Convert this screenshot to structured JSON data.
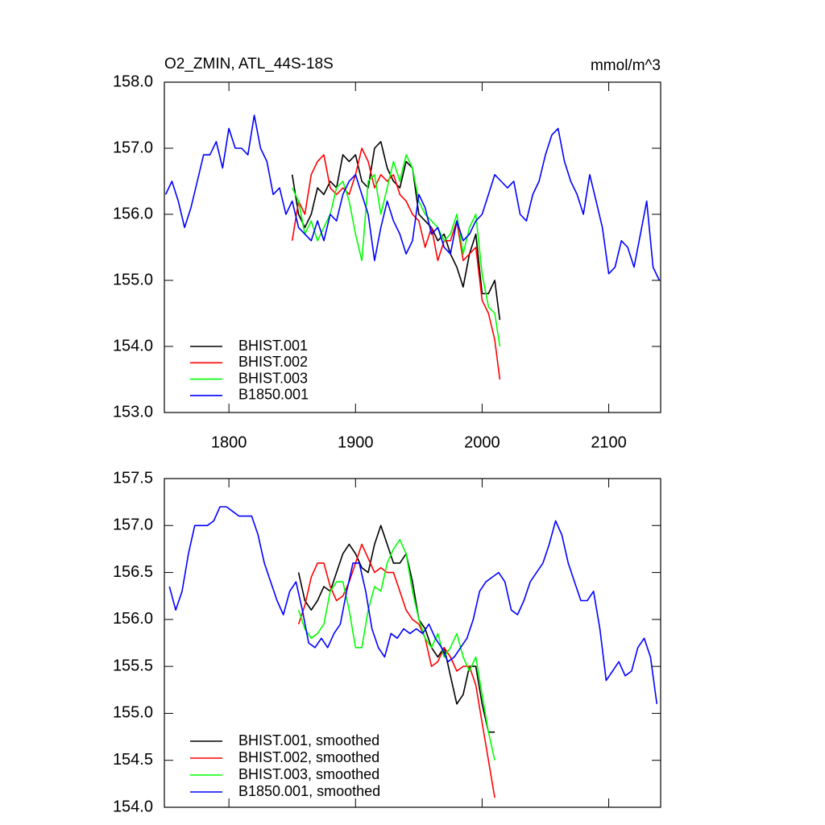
{
  "chart_data": [
    {
      "type": "line",
      "title": "O2_ZMIN, ATL_44S-18S",
      "units": "mmol/m^3",
      "xlim": [
        1749,
        2141
      ],
      "xticks": [
        1800,
        1900,
        2000,
        2100
      ],
      "show_xtick_labels": true,
      "ylim": [
        153,
        158
      ],
      "yticks": [
        {
          "value": 153,
          "label": "153.0"
        },
        {
          "value": 154,
          "label": "154.0"
        },
        {
          "value": 155,
          "label": "155.0"
        },
        {
          "value": 156,
          "label": "156.0"
        },
        {
          "value": 157,
          "label": "157.0"
        },
        {
          "value": 158,
          "label": "158.0"
        }
      ],
      "legend": "lower left",
      "series": [
        {
          "name": "BHIST.001",
          "color": "#000000",
          "x": [
            1850,
            1855,
            1860,
            1865,
            1870,
            1875,
            1880,
            1885,
            1890,
            1895,
            1900,
            1905,
            1910,
            1915,
            1920,
            1925,
            1930,
            1935,
            1940,
            1945,
            1950,
            1955,
            1960,
            1965,
            1970,
            1975,
            1980,
            1985,
            1990,
            1995,
            2000,
            2005,
            2010,
            2014
          ],
          "values": [
            156.6,
            156.0,
            155.8,
            156.0,
            156.4,
            156.3,
            156.5,
            156.4,
            156.9,
            156.8,
            156.9,
            156.5,
            156.4,
            157.0,
            157.1,
            156.7,
            156.5,
            156.4,
            156.8,
            156.7,
            156.0,
            155.9,
            155.8,
            155.6,
            155.7,
            155.4,
            155.2,
            154.9,
            155.4,
            155.7,
            154.8,
            154.8,
            155.0,
            154.4
          ]
        },
        {
          "name": "BHIST.002",
          "color": "#ff0000",
          "x": [
            1850,
            1855,
            1860,
            1865,
            1870,
            1875,
            1880,
            1885,
            1890,
            1895,
            1900,
            1905,
            1910,
            1915,
            1920,
            1925,
            1930,
            1935,
            1940,
            1945,
            1950,
            1955,
            1960,
            1965,
            1970,
            1975,
            1980,
            1985,
            1990,
            1995,
            2000,
            2005,
            2010,
            2014
          ],
          "values": [
            155.6,
            156.2,
            156.0,
            156.6,
            156.8,
            156.9,
            156.4,
            156.3,
            156.4,
            156.3,
            156.6,
            157.0,
            156.8,
            156.4,
            156.6,
            156.5,
            156.6,
            156.3,
            156.2,
            156.0,
            155.9,
            155.5,
            155.8,
            155.3,
            155.6,
            155.6,
            155.9,
            155.3,
            155.4,
            155.5,
            154.7,
            154.5,
            154.1,
            153.5
          ]
        },
        {
          "name": "BHIST.003",
          "color": "#00ff00",
          "x": [
            1850,
            1855,
            1860,
            1865,
            1870,
            1875,
            1880,
            1885,
            1890,
            1895,
            1900,
            1905,
            1910,
            1915,
            1920,
            1925,
            1930,
            1935,
            1940,
            1945,
            1950,
            1955,
            1960,
            1965,
            1970,
            1975,
            1980,
            1985,
            1990,
            1995,
            2000,
            2005,
            2010,
            2014
          ],
          "values": [
            156.4,
            156.2,
            155.7,
            155.9,
            155.6,
            155.8,
            156.0,
            156.4,
            156.5,
            156.2,
            155.7,
            155.3,
            156.5,
            156.6,
            156.0,
            156.4,
            156.8,
            156.5,
            156.9,
            156.7,
            156.2,
            156.0,
            155.9,
            155.8,
            155.6,
            155.7,
            156.0,
            155.4,
            155.8,
            156.0,
            155.1,
            154.6,
            154.5,
            154.0
          ]
        },
        {
          "name": "B1850.001",
          "color": "#0000ff",
          "x": [
            1750,
            1755,
            1760,
            1765,
            1770,
            1775,
            1780,
            1785,
            1790,
            1795,
            1800,
            1805,
            1810,
            1815,
            1820,
            1825,
            1830,
            1835,
            1840,
            1845,
            1850,
            1855,
            1860,
            1865,
            1870,
            1875,
            1880,
            1885,
            1890,
            1895,
            1900,
            1905,
            1910,
            1915,
            1920,
            1925,
            1930,
            1935,
            1940,
            1945,
            1950,
            1955,
            1960,
            1965,
            1970,
            1975,
            1980,
            1985,
            1990,
            1995,
            2000,
            2005,
            2010,
            2015,
            2020,
            2025,
            2030,
            2035,
            2040,
            2045,
            2050,
            2055,
            2060,
            2065,
            2070,
            2075,
            2080,
            2085,
            2090,
            2095,
            2100,
            2105,
            2110,
            2115,
            2120,
            2125,
            2130,
            2135,
            2140
          ],
          "values": [
            156.3,
            156.5,
            156.2,
            155.8,
            156.1,
            156.5,
            156.9,
            156.9,
            157.1,
            156.7,
            157.3,
            157.0,
            157.0,
            156.9,
            157.5,
            157.0,
            156.8,
            156.3,
            156.4,
            156.0,
            156.2,
            155.8,
            155.7,
            155.6,
            155.9,
            155.6,
            156.0,
            155.9,
            156.3,
            156.5,
            156.6,
            156.3,
            156.0,
            155.3,
            155.8,
            156.2,
            155.9,
            155.7,
            155.4,
            155.6,
            156.3,
            156.1,
            155.7,
            155.8,
            155.5,
            155.4,
            155.9,
            155.6,
            155.7,
            155.9,
            156.0,
            156.3,
            156.6,
            156.5,
            156.4,
            156.5,
            156.0,
            155.9,
            156.3,
            156.5,
            156.9,
            157.2,
            157.3,
            156.8,
            156.5,
            156.3,
            156.0,
            156.6,
            156.2,
            155.8,
            155.1,
            155.2,
            155.6,
            155.5,
            155.2,
            155.7,
            156.2,
            155.2,
            155.0
          ]
        }
      ]
    },
    {
      "type": "line",
      "xlim": [
        1749,
        2141
      ],
      "xticks": [
        1800,
        1900,
        2000,
        2100
      ],
      "show_xtick_labels": false,
      "ylim": [
        154,
        157.5
      ],
      "yticks": [
        {
          "value": 154,
          "label": "154.0"
        },
        {
          "value": 154.5,
          "label": "154.5"
        },
        {
          "value": 155,
          "label": "155.0"
        },
        {
          "value": 155.5,
          "label": "155.5"
        },
        {
          "value": 156,
          "label": "156.0"
        },
        {
          "value": 156.5,
          "label": "156.5"
        },
        {
          "value": 157,
          "label": "157.0"
        },
        {
          "value": 157.5,
          "label": "157.5"
        }
      ],
      "legend": "lower left",
      "series": [
        {
          "name": "BHIST.001, smoothed",
          "color": "#000000",
          "x": [
            1855,
            1860,
            1865,
            1870,
            1875,
            1880,
            1885,
            1890,
            1895,
            1900,
            1905,
            1910,
            1915,
            1920,
            1925,
            1930,
            1935,
            1940,
            1945,
            1950,
            1955,
            1960,
            1965,
            1970,
            1975,
            1980,
            1985,
            1990,
            1995,
            2000,
            2005,
            2010
          ],
          "values": [
            156.5,
            156.2,
            156.1,
            156.2,
            156.35,
            156.3,
            156.5,
            156.7,
            156.8,
            156.7,
            156.55,
            156.5,
            156.8,
            157.0,
            156.8,
            156.6,
            156.6,
            156.7,
            156.4,
            156.0,
            155.9,
            155.7,
            155.6,
            155.7,
            155.4,
            155.1,
            155.2,
            155.5,
            155.5,
            155.1,
            154.8,
            154.8
          ]
        },
        {
          "name": "BHIST.002, smoothed",
          "color": "#ff0000",
          "x": [
            1855,
            1860,
            1865,
            1870,
            1875,
            1880,
            1885,
            1890,
            1895,
            1900,
            1905,
            1910,
            1915,
            1920,
            1925,
            1930,
            1935,
            1940,
            1945,
            1950,
            1955,
            1960,
            1965,
            1970,
            1975,
            1980,
            1985,
            1990,
            1995,
            2000,
            2005,
            2010
          ],
          "values": [
            155.95,
            156.15,
            156.45,
            156.6,
            156.6,
            156.35,
            156.2,
            156.25,
            156.4,
            156.6,
            156.8,
            156.65,
            156.5,
            156.55,
            156.5,
            156.5,
            156.3,
            156.1,
            156.0,
            155.95,
            155.8,
            155.5,
            155.55,
            155.7,
            155.6,
            155.45,
            155.5,
            155.5,
            155.3,
            154.9,
            154.5,
            154.1
          ]
        },
        {
          "name": "BHIST.003, smoothed",
          "color": "#00ff00",
          "x": [
            1855,
            1860,
            1865,
            1870,
            1875,
            1880,
            1885,
            1890,
            1895,
            1900,
            1905,
            1910,
            1915,
            1920,
            1925,
            1930,
            1935,
            1940,
            1945,
            1950,
            1955,
            1960,
            1965,
            1970,
            1975,
            1980,
            1985,
            1990,
            1995,
            2000,
            2005,
            2010
          ],
          "values": [
            156.1,
            155.9,
            155.8,
            155.85,
            155.95,
            156.3,
            156.4,
            156.4,
            156.1,
            155.7,
            155.7,
            156.1,
            156.35,
            156.3,
            156.6,
            156.75,
            156.85,
            156.7,
            156.3,
            156.0,
            155.8,
            155.7,
            155.85,
            155.6,
            155.7,
            155.85,
            155.6,
            155.45,
            155.6,
            155.2,
            154.8,
            154.5
          ]
        },
        {
          "name": "B1850.001, smoothed",
          "color": "#0000ff",
          "x": [
            1753,
            1758,
            1763,
            1768,
            1773,
            1778,
            1783,
            1788,
            1793,
            1798,
            1803,
            1808,
            1813,
            1818,
            1823,
            1828,
            1833,
            1838,
            1843,
            1848,
            1853,
            1858,
            1863,
            1868,
            1873,
            1878,
            1883,
            1888,
            1893,
            1898,
            1903,
            1908,
            1913,
            1918,
            1923,
            1928,
            1933,
            1938,
            1943,
            1948,
            1953,
            1958,
            1963,
            1968,
            1973,
            1978,
            1983,
            1988,
            1993,
            1998,
            2003,
            2008,
            2013,
            2018,
            2023,
            2028,
            2033,
            2038,
            2043,
            2048,
            2053,
            2058,
            2063,
            2068,
            2073,
            2078,
            2083,
            2088,
            2093,
            2098,
            2103,
            2108,
            2113,
            2118,
            2123,
            2128,
            2133,
            2138
          ],
          "values": [
            156.35,
            156.1,
            156.3,
            156.7,
            157.0,
            157.0,
            157.0,
            157.05,
            157.2,
            157.2,
            157.15,
            157.1,
            157.1,
            157.1,
            156.9,
            156.6,
            156.4,
            156.2,
            156.05,
            156.3,
            156.4,
            156.1,
            155.75,
            155.7,
            155.8,
            155.7,
            155.85,
            155.95,
            156.3,
            156.6,
            156.6,
            156.3,
            155.9,
            155.7,
            155.6,
            155.85,
            155.8,
            155.9,
            155.85,
            155.9,
            155.85,
            155.95,
            155.8,
            155.7,
            155.55,
            155.6,
            155.7,
            155.8,
            156.0,
            156.3,
            156.4,
            156.45,
            156.5,
            156.4,
            156.1,
            156.05,
            156.2,
            156.4,
            156.5,
            156.6,
            156.8,
            157.05,
            156.9,
            156.6,
            156.4,
            156.2,
            156.2,
            156.3,
            155.9,
            155.35,
            155.45,
            155.55,
            155.4,
            155.45,
            155.7,
            155.8,
            155.6,
            155.1
          ]
        }
      ]
    }
  ]
}
